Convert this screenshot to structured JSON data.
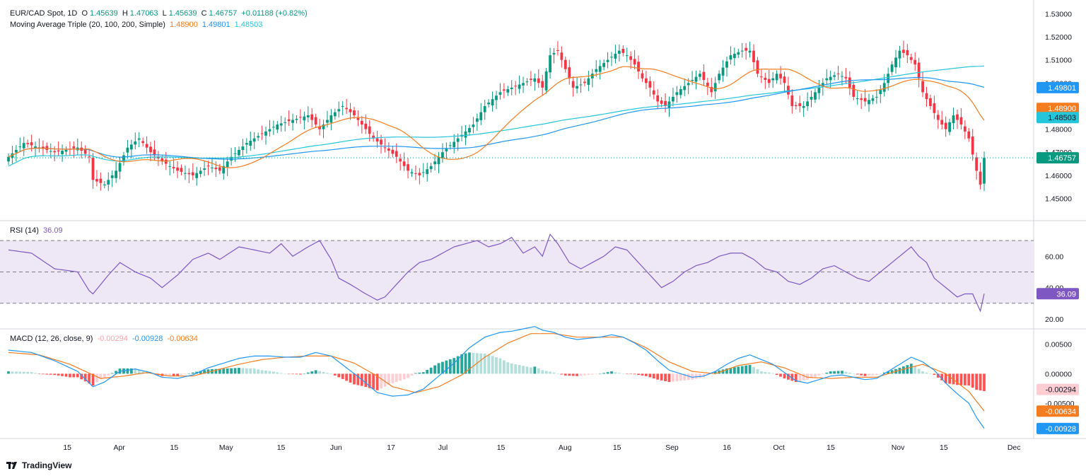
{
  "header": {
    "symbol": "EUR/CAD Spot, 1D",
    "o_label": "O",
    "o": "1.45639",
    "h_label": "H",
    "h": "1.47063",
    "l_label": "L",
    "l": "1.45639",
    "c_label": "C",
    "c": "1.46757",
    "change": "+0.01188 (+0.82%)",
    "ma_title": "Moving Average Triple (20, 100, 200, Simple)",
    "ma20": "1.48900",
    "ma100": "1.49801",
    "ma200": "1.48503"
  },
  "rsi_header": {
    "title": "RSI (14)",
    "value": "36.09"
  },
  "macd_header": {
    "title": "MACD (12, 26, close, 9)",
    "hist": "-0.00294",
    "macd": "-0.00928",
    "signal": "-0.00634"
  },
  "brand": {
    "name": "TradingView"
  },
  "colors": {
    "up": "#089981",
    "down": "#f23645",
    "ma20": "#f57c1f",
    "ma100": "#2196f3",
    "ma200": "#26c6da",
    "rsi": "#7e57c2",
    "rsi_band": "#ede7f6",
    "macd": "#2196f3",
    "signal": "#f57c1f",
    "hist_up_strong": "#26a69a",
    "hist_up_weak": "#b2dfdb",
    "hist_down_strong": "#ff5252",
    "hist_down_weak": "#ffcdd2"
  },
  "chart_data": [
    {
      "type": "candlestick",
      "title": "EUR/CAD Spot, 1D",
      "x_tick_labels": [
        "15",
        "Apr",
        "15",
        "May",
        "15",
        "Jun",
        "17",
        "Jul",
        "15",
        "Aug",
        "15",
        "Sep",
        "16",
        "Oct",
        "15",
        "Nov",
        "15",
        "Dec"
      ],
      "y_tick_labels": [
        "1.53000",
        "1.52000",
        "1.51000",
        "1.50000",
        "1.49000",
        "1.48000",
        "1.47000",
        "1.46000",
        "1.45000"
      ],
      "ylim": [
        1.4425,
        1.5335
      ],
      "last_price_label": "1.46757",
      "ma_labels": {
        "ma100": "1.49801",
        "ma20": "1.48900",
        "ma200": "1.48503"
      },
      "close_anchors": [
        [
          0,
          1.468
        ],
        [
          4,
          1.474
        ],
        [
          12,
          1.47
        ],
        [
          18,
          1.472
        ],
        [
          21,
          1.468
        ],
        [
          22,
          1.458
        ],
        [
          25,
          1.456
        ],
        [
          28,
          1.462
        ],
        [
          31,
          1.472
        ],
        [
          34,
          1.476
        ],
        [
          37,
          1.47
        ],
        [
          40,
          1.466
        ],
        [
          44,
          1.462
        ],
        [
          48,
          1.46
        ],
        [
          52,
          1.464
        ],
        [
          55,
          1.462
        ],
        [
          58,
          1.468
        ],
        [
          62,
          1.474
        ],
        [
          66,
          1.478
        ],
        [
          70,
          1.482
        ],
        [
          74,
          1.484
        ],
        [
          78,
          1.486
        ],
        [
          81,
          1.48
        ],
        [
          84,
          1.486
        ],
        [
          87,
          1.49
        ],
        [
          90,
          1.486
        ],
        [
          93,
          1.48
        ],
        [
          95,
          1.476
        ],
        [
          98,
          1.472
        ],
        [
          101,
          1.468
        ],
        [
          104,
          1.462
        ],
        [
          107,
          1.46
        ],
        [
          110,
          1.464
        ],
        [
          113,
          1.47
        ],
        [
          117,
          1.476
        ],
        [
          121,
          1.482
        ],
        [
          124,
          1.49
        ],
        [
          128,
          1.496
        ],
        [
          131,
          1.498
        ],
        [
          134,
          1.5
        ],
        [
          137,
          1.502
        ],
        [
          139,
          1.498
        ],
        [
          141,
          1.512
        ],
        [
          143,
          1.514
        ],
        [
          145,
          1.506
        ],
        [
          147,
          1.498
        ],
        [
          150,
          1.5
        ],
        [
          153,
          1.506
        ],
        [
          156,
          1.51
        ],
        [
          159,
          1.514
        ],
        [
          161,
          1.512
        ],
        [
          163,
          1.508
        ],
        [
          165,
          1.502
        ],
        [
          167,
          1.498
        ],
        [
          169,
          1.492
        ],
        [
          171,
          1.49
        ],
        [
          174,
          1.496
        ],
        [
          177,
          1.5
        ],
        [
          180,
          1.504
        ],
        [
          183,
          1.496
        ],
        [
          185,
          1.504
        ],
        [
          188,
          1.512
        ],
        [
          191,
          1.514
        ],
        [
          193,
          1.514
        ],
        [
          195,
          1.504
        ],
        [
          198,
          1.5
        ],
        [
          200,
          1.504
        ],
        [
          202,
          1.5
        ],
        [
          204,
          1.49
        ],
        [
          207,
          1.49
        ],
        [
          210,
          1.496
        ],
        [
          213,
          1.502
        ],
        [
          216,
          1.504
        ],
        [
          218,
          1.502
        ],
        [
          220,
          1.494
        ],
        [
          223,
          1.492
        ],
        [
          226,
          1.494
        ],
        [
          228,
          1.5
        ],
        [
          230,
          1.508
        ],
        [
          232,
          1.514
        ],
        [
          234,
          1.512
        ],
        [
          236,
          1.508
        ],
        [
          238,
          1.496
        ],
        [
          240,
          1.49
        ],
        [
          242,
          1.484
        ],
        [
          244,
          1.48
        ],
        [
          246,
          1.486
        ],
        [
          248,
          1.482
        ],
        [
          250,
          1.476
        ],
        [
          252,
          1.462
        ],
        [
          253,
          1.456
        ],
        [
          254,
          1.46757
        ]
      ]
    },
    {
      "type": "line",
      "title": "RSI (14)",
      "y_tick_labels": [
        "60.00",
        "40.00",
        "20.00"
      ],
      "ylim": [
        15,
        80
      ],
      "bands": [
        30,
        50,
        70
      ],
      "last_value": "36.09",
      "values_anchors": [
        [
          0,
          64
        ],
        [
          6,
          62
        ],
        [
          12,
          52
        ],
        [
          18,
          50
        ],
        [
          21,
          38
        ],
        [
          22,
          36
        ],
        [
          26,
          48
        ],
        [
          29,
          56
        ],
        [
          33,
          50
        ],
        [
          37,
          46
        ],
        [
          40,
          40
        ],
        [
          44,
          48
        ],
        [
          48,
          58
        ],
        [
          52,
          62
        ],
        [
          55,
          58
        ],
        [
          60,
          66
        ],
        [
          64,
          64
        ],
        [
          68,
          62
        ],
        [
          71,
          68
        ],
        [
          74,
          60
        ],
        [
          78,
          66
        ],
        [
          81,
          70
        ],
        [
          84,
          58
        ],
        [
          86,
          46
        ],
        [
          89,
          42
        ],
        [
          93,
          36
        ],
        [
          96,
          32
        ],
        [
          98,
          34
        ],
        [
          101,
          42
        ],
        [
          104,
          50
        ],
        [
          107,
          56
        ],
        [
          110,
          58
        ],
        [
          113,
          62
        ],
        [
          116,
          66
        ],
        [
          119,
          68
        ],
        [
          122,
          70
        ],
        [
          125,
          66
        ],
        [
          128,
          68
        ],
        [
          131,
          72
        ],
        [
          134,
          62
        ],
        [
          137,
          66
        ],
        [
          139,
          60
        ],
        [
          141,
          74
        ],
        [
          143,
          68
        ],
        [
          146,
          56
        ],
        [
          149,
          52
        ],
        [
          152,
          56
        ],
        [
          155,
          60
        ],
        [
          158,
          66
        ],
        [
          161,
          64
        ],
        [
          164,
          56
        ],
        [
          167,
          48
        ],
        [
          170,
          40
        ],
        [
          173,
          44
        ],
        [
          176,
          50
        ],
        [
          179,
          54
        ],
        [
          182,
          56
        ],
        [
          185,
          60
        ],
        [
          188,
          62
        ],
        [
          191,
          62
        ],
        [
          194,
          58
        ],
        [
          197,
          52
        ],
        [
          200,
          50
        ],
        [
          203,
          44
        ],
        [
          206,
          42
        ],
        [
          209,
          46
        ],
        [
          212,
          52
        ],
        [
          215,
          54
        ],
        [
          218,
          50
        ],
        [
          221,
          46
        ],
        [
          224,
          44
        ],
        [
          227,
          50
        ],
        [
          230,
          56
        ],
        [
          233,
          62
        ],
        [
          235,
          66
        ],
        [
          237,
          60
        ],
        [
          239,
          56
        ],
        [
          241,
          46
        ],
        [
          244,
          40
        ],
        [
          247,
          34
        ],
        [
          249,
          36
        ],
        [
          251,
          36
        ],
        [
          253,
          25
        ],
        [
          254,
          36.09
        ]
      ]
    },
    {
      "type": "bar",
      "title": "MACD (12, 26, close, 9)",
      "y_tick_labels": [
        "0.00500",
        "0.00000",
        "-0.00500"
      ],
      "ylim": [
        -0.0105,
        0.007
      ],
      "macd_anchors": [
        [
          0,
          0.004
        ],
        [
          6,
          0.0036
        ],
        [
          12,
          0.0022
        ],
        [
          18,
          0.0004
        ],
        [
          22,
          -0.0022
        ],
        [
          25,
          -0.0014
        ],
        [
          29,
          0.0004
        ],
        [
          33,
          0.0008
        ],
        [
          37,
          0.0002
        ],
        [
          40,
          -0.0006
        ],
        [
          44,
          -0.0008
        ],
        [
          48,
          -0.0002
        ],
        [
          52,
          0.001
        ],
        [
          56,
          0.0018
        ],
        [
          60,
          0.0026
        ],
        [
          64,
          0.003
        ],
        [
          68,
          0.003
        ],
        [
          72,
          0.0028
        ],
        [
          76,
          0.0028
        ],
        [
          80,
          0.0036
        ],
        [
          84,
          0.003
        ],
        [
          88,
          0.001
        ],
        [
          92,
          -0.001
        ],
        [
          96,
          -0.0032
        ],
        [
          100,
          -0.0038
        ],
        [
          104,
          -0.0036
        ],
        [
          108,
          -0.0026
        ],
        [
          112,
          -0.0004
        ],
        [
          116,
          0.0018
        ],
        [
          120,
          0.0044
        ],
        [
          124,
          0.0062
        ],
        [
          128,
          0.007
        ],
        [
          131,
          0.0072
        ],
        [
          134,
          0.0076
        ],
        [
          137,
          0.008
        ],
        [
          139,
          0.0074
        ],
        [
          142,
          0.007
        ],
        [
          145,
          0.0062
        ],
        [
          148,
          0.0058
        ],
        [
          151,
          0.006
        ],
        [
          154,
          0.0062
        ],
        [
          157,
          0.0066
        ],
        [
          160,
          0.0062
        ],
        [
          163,
          0.0052
        ],
        [
          166,
          0.004
        ],
        [
          169,
          0.0022
        ],
        [
          172,
          0.0006
        ],
        [
          175,
          0.0
        ],
        [
          178,
          -0.0006
        ],
        [
          181,
          -0.0004
        ],
        [
          184,
          0.0004
        ],
        [
          187,
          0.0016
        ],
        [
          190,
          0.0026
        ],
        [
          193,
          0.0032
        ],
        [
          196,
          0.0024
        ],
        [
          199,
          0.0016
        ],
        [
          202,
          0.0002
        ],
        [
          205,
          -0.0012
        ],
        [
          208,
          -0.0016
        ],
        [
          211,
          -0.001
        ],
        [
          214,
          -0.0004
        ],
        [
          217,
          -0.0002
        ],
        [
          220,
          -0.0006
        ],
        [
          223,
          -0.001
        ],
        [
          226,
          -0.0008
        ],
        [
          229,
          0.0004
        ],
        [
          232,
          0.0016
        ],
        [
          235,
          0.0028
        ],
        [
          238,
          0.002
        ],
        [
          241,
          0.0006
        ],
        [
          244,
          -0.0016
        ],
        [
          247,
          -0.0034
        ],
        [
          250,
          -0.005
        ],
        [
          252,
          -0.0074
        ],
        [
          254,
          -0.00928
        ]
      ],
      "signal_anchors": [
        [
          0,
          0.0036
        ],
        [
          8,
          0.0032
        ],
        [
          16,
          0.0016
        ],
        [
          24,
          -0.0008
        ],
        [
          30,
          -0.0004
        ],
        [
          36,
          0.0002
        ],
        [
          42,
          -0.0004
        ],
        [
          48,
          -0.0004
        ],
        [
          54,
          0.0006
        ],
        [
          60,
          0.0016
        ],
        [
          66,
          0.0024
        ],
        [
          72,
          0.0028
        ],
        [
          78,
          0.003
        ],
        [
          84,
          0.003
        ],
        [
          90,
          0.0018
        ],
        [
          96,
          -0.0004
        ],
        [
          100,
          -0.0022
        ],
        [
          106,
          -0.0032
        ],
        [
          112,
          -0.0022
        ],
        [
          118,
          -0.0002
        ],
        [
          124,
          0.0028
        ],
        [
          130,
          0.0052
        ],
        [
          136,
          0.0068
        ],
        [
          142,
          0.0068
        ],
        [
          148,
          0.0062
        ],
        [
          154,
          0.0062
        ],
        [
          160,
          0.0062
        ],
        [
          166,
          0.0044
        ],
        [
          172,
          0.002
        ],
        [
          178,
          0.0004
        ],
        [
          184,
          0.0
        ],
        [
          190,
          0.0014
        ],
        [
          196,
          0.002
        ],
        [
          202,
          0.001
        ],
        [
          208,
          -0.0006
        ],
        [
          214,
          -0.0008
        ],
        [
          220,
          -0.0006
        ],
        [
          226,
          -0.0006
        ],
        [
          232,
          0.0006
        ],
        [
          238,
          0.0016
        ],
        [
          244,
          0.0
        ],
        [
          250,
          -0.003
        ],
        [
          254,
          -0.00634
        ]
      ]
    }
  ]
}
